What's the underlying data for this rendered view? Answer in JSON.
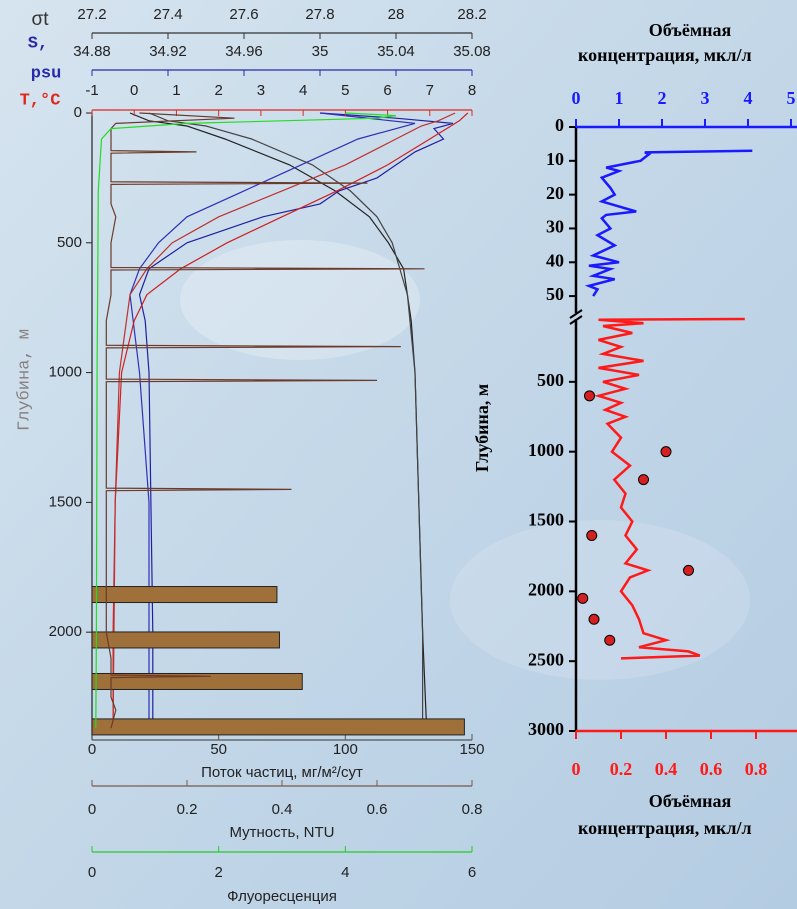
{
  "chart_data": [
    {
      "type": "profile",
      "ylabel": "Глубина, м",
      "ylim": [
        0,
        2400
      ],
      "yticks": [
        0,
        500,
        1000,
        1500,
        2000
      ],
      "x_axes": [
        {
          "position": "top",
          "label": [
            "σt"
          ],
          "color": "#333333",
          "xlim": [
            27.2,
            28.2
          ],
          "xticks": [
            27.2,
            27.4,
            27.6,
            27.8,
            28,
            28.2
          ],
          "series": [
            {
              "color": "#222222",
              "depth": [
                0,
                30,
                50,
                100,
                200,
                300,
                400,
                500,
                600,
                800,
                1000,
                1500,
                2000,
                2350
              ],
              "values": [
                27.3,
                27.35,
                27.45,
                27.55,
                27.72,
                27.84,
                27.93,
                27.98,
                28.02,
                28.04,
                28.05,
                28.06,
                28.07,
                28.08
              ]
            },
            {
              "color": "#444444",
              "depth": [
                0,
                30,
                50,
                100,
                200,
                300,
                400,
                500,
                700,
                1000,
                1500,
                2000,
                2350
              ],
              "values": [
                27.35,
                27.4,
                27.5,
                27.62,
                27.78,
                27.88,
                27.95,
                27.99,
                28.03,
                28.05,
                28.06,
                28.07,
                28.07
              ]
            }
          ]
        },
        {
          "position": "top",
          "label": [
            "S,",
            "psu"
          ],
          "color": "#2a2aa8",
          "xlim": [
            34.88,
            35.08
          ],
          "xticks": [
            34.88,
            34.92,
            34.96,
            35,
            35.04,
            35.08
          ],
          "series": [
            {
              "color": "#2020a0",
              "depth": [
                0,
                20,
                40,
                60,
                100,
                150,
                200,
                250,
                300,
                350,
                400,
                450,
                500,
                550,
                600,
                700,
                800,
                1000,
                1500,
                2000,
                2350
              ],
              "values": [
                35.0,
                35.04,
                35.07,
                35.06,
                35.065,
                35.05,
                35.04,
                35.03,
                35.01,
                35.0,
                34.97,
                34.95,
                34.93,
                34.92,
                34.91,
                34.905,
                34.908,
                34.91,
                34.911,
                34.912,
                34.912
              ]
            },
            {
              "color": "#3030b8",
              "depth": [
                0,
                40,
                100,
                200,
                300,
                400,
                500,
                600,
                700,
                1000,
                1500,
                2000,
                2350
              ],
              "values": [
                35.0,
                35.05,
                35.02,
                34.99,
                34.96,
                34.93,
                34.915,
                34.905,
                34.9,
                34.905,
                34.91,
                34.91,
                34.91
              ]
            }
          ]
        },
        {
          "position": "top",
          "label": [
            "T,°C"
          ],
          "color": "#e0281e",
          "xlim": [
            -1,
            8
          ],
          "xticks": [
            -1,
            0,
            1,
            2,
            3,
            4,
            5,
            6,
            7,
            8
          ],
          "series": [
            {
              "color": "#d02020",
              "depth": [
                0,
                30,
                50,
                100,
                200,
                300,
                400,
                500,
                600,
                700,
                800,
                1000,
                1500,
                2000,
                2350
              ],
              "values": [
                7.9,
                7.7,
                7.5,
                7.0,
                6.0,
                4.8,
                3.5,
                2.2,
                1.1,
                0.3,
                0.0,
                -0.3,
                -0.45,
                -0.5,
                -0.5
              ]
            },
            {
              "color": "#c03030",
              "depth": [
                0,
                30,
                50,
                100,
                200,
                300,
                400,
                500,
                600,
                700,
                1000,
                1500,
                2350
              ],
              "values": [
                7.6,
                7.2,
                6.8,
                6.2,
                5.0,
                3.5,
                2.0,
                0.9,
                0.3,
                -0.1,
                -0.35,
                -0.45,
                -0.5
              ]
            }
          ]
        },
        {
          "position": "bottom",
          "label": [
            "Поток частиц, мг/м²/сут"
          ],
          "color": "#555555",
          "xlim": [
            0,
            150
          ],
          "xticks": [
            0,
            50,
            100,
            150
          ],
          "bars": {
            "color": "#a0703a",
            "depth": [
              1855,
              2030,
              2190,
              2365
            ],
            "values": [
              73,
              74,
              83,
              147
            ]
          }
        },
        {
          "position": "bottom",
          "label": [
            "Мутность, NTU"
          ],
          "color": "#7a5a4a",
          "xlim": [
            0,
            0.8
          ],
          "xticks": [
            0,
            0.2,
            0.4,
            0.6,
            0.8
          ],
          "series": [
            {
              "color": "#6b3a2a",
              "depth": [
                0,
                20,
                40,
                60,
                100,
                145,
                150,
                155,
                200,
                265,
                270,
                275,
                350,
                400,
                500,
                595,
                600,
                605,
                700,
                800,
                895,
                900,
                905,
                1000,
                1025,
                1030,
                1035,
                1200,
                1400,
                1445,
                1450,
                1455,
                1600,
                1800,
                2000,
                2100,
                2165,
                2170,
                2175,
                2250,
                2300,
                2370
              ],
              "values": [
                0.1,
                0.3,
                0.05,
                0.04,
                0.04,
                0.04,
                0.22,
                0.04,
                0.04,
                0.04,
                0.58,
                0.04,
                0.04,
                0.05,
                0.04,
                0.04,
                0.7,
                0.04,
                0.04,
                0.03,
                0.03,
                0.65,
                0.03,
                0.03,
                0.03,
                0.6,
                0.03,
                0.03,
                0.03,
                0.03,
                0.42,
                0.03,
                0.03,
                0.03,
                0.03,
                0.04,
                0.04,
                0.25,
                0.04,
                0.04,
                0.05,
                0.04
              ]
            }
          ]
        },
        {
          "position": "bottom",
          "label": [
            "Флуоресценция"
          ],
          "color": "#22cc22",
          "xlim": [
            0,
            6
          ],
          "xticks": [
            0,
            2,
            4,
            6
          ],
          "series": [
            {
              "color": "#22dd22",
              "depth": [
                0,
                10,
                20,
                30,
                40,
                60,
                100,
                300,
                1000,
                2000,
                2370
              ],
              "values": [
                4.0,
                4.8,
                4.5,
                3.0,
                1.5,
                0.3,
                0.15,
                0.1,
                0.08,
                0.07,
                0.06
              ]
            }
          ]
        }
      ]
    },
    {
      "type": "profile_panels",
      "ylabel": "Глубина, м",
      "xlabel_top": [
        "Объёмная",
        "концентрация, мкл/л"
      ],
      "xlabel_bottom": [
        "Объёмная",
        "концентрация, мкл/л"
      ],
      "panels": [
        {
          "color": "#1a1aff",
          "xlim": [
            0,
            5
          ],
          "xticks": [
            0,
            1,
            2,
            3,
            4,
            5
          ],
          "ylim": [
            0,
            55
          ],
          "yticks": [
            0,
            10,
            20,
            30,
            40,
            50
          ],
          "line": {
            "depth": [
              7,
              7.5,
              8,
              10,
              12,
              13,
              15,
              18,
              20,
              22,
              25,
              26,
              27,
              30,
              32,
              35,
              38,
              40,
              41,
              42,
              44,
              45,
              47,
              48,
              50
            ],
            "values": [
              4.1,
              1.6,
              1.7,
              1.5,
              0.7,
              1.0,
              0.6,
              0.8,
              0.9,
              0.6,
              1.4,
              0.7,
              0.6,
              0.8,
              0.5,
              0.9,
              0.4,
              1.0,
              0.3,
              0.8,
              0.4,
              0.9,
              0.3,
              0.5,
              0.4
            ]
          }
        },
        {
          "color": "#ff1a1a",
          "xlim": [
            0,
            1
          ],
          "xticks": [
            0,
            0.2,
            0.4,
            0.6,
            0.8
          ],
          "ylim": [
            50,
            3000
          ],
          "yticks": [
            500,
            1000,
            1500,
            2000,
            2500,
            3000
          ],
          "line": {
            "depth": [
              50,
              55,
              80,
              100,
              150,
              200,
              250,
              300,
              350,
              400,
              450,
              500,
              550,
              600,
              650,
              700,
              750,
              800,
              900,
              1000,
              1100,
              1200,
              1300,
              1400,
              1500,
              1600,
              1700,
              1800,
              1850,
              1900,
              2000,
              2100,
              2200,
              2300,
              2350,
              2400,
              2430,
              2460,
              2480
            ],
            "values": [
              0.75,
              0.1,
              0.3,
              0.12,
              0.25,
              0.1,
              0.2,
              0.12,
              0.3,
              0.1,
              0.28,
              0.12,
              0.22,
              0.1,
              0.2,
              0.13,
              0.22,
              0.14,
              0.2,
              0.16,
              0.24,
              0.17,
              0.22,
              0.2,
              0.25,
              0.22,
              0.27,
              0.22,
              0.32,
              0.24,
              0.2,
              0.25,
              0.28,
              0.3,
              0.4,
              0.28,
              0.5,
              0.55,
              0.2
            ]
          },
          "points": {
            "color": "#d42020",
            "depth": [
              600,
              1000,
              1200,
              1600,
              1850,
              2050,
              2200,
              2350
            ],
            "values": [
              0.06,
              0.4,
              0.3,
              0.07,
              0.5,
              0.03,
              0.08,
              0.15
            ]
          }
        }
      ]
    }
  ]
}
